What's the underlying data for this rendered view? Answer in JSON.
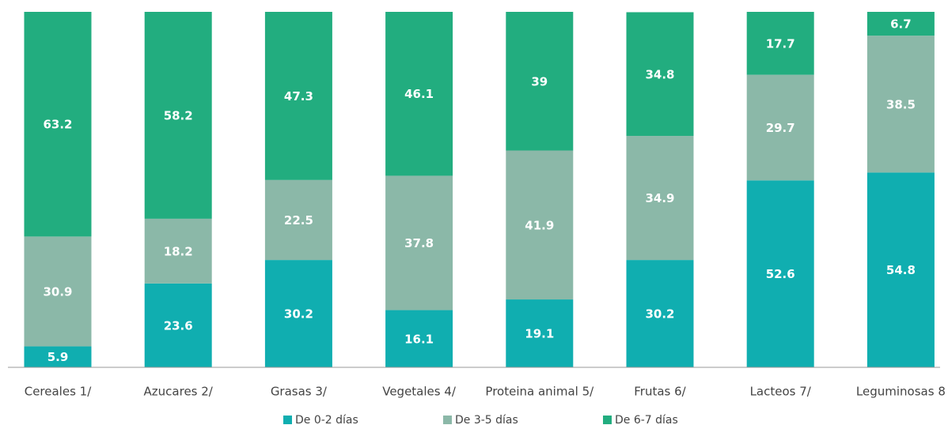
{
  "chart_data": {
    "type": "stacked_bar",
    "categories": [
      "Cereales 1/",
      "Azucares 2/",
      "Grasas 3/",
      "Vegetales 4/",
      "Proteina animal 5/",
      "Frutas 6/",
      "Lacteos 7/",
      "Leguminosas 8"
    ],
    "series": [
      {
        "name": "De 0-2 días",
        "color": "#10aeb0",
        "values": [
          5.9,
          23.6,
          30.2,
          16.1,
          19.1,
          30.2,
          52.6,
          54.8
        ]
      },
      {
        "name": "De 3-5 días",
        "color": "#8bb8a8",
        "values": [
          30.9,
          18.2,
          22.5,
          37.8,
          41.9,
          34.9,
          29.7,
          38.5
        ]
      },
      {
        "name": "De 6-7 días",
        "color": "#22ad7f",
        "values": [
          63.2,
          58.2,
          47.3,
          46.1,
          39.0,
          34.8,
          17.7,
          6.7
        ]
      }
    ],
    "ylim": [
      0,
      100
    ],
    "legend": "bottom"
  }
}
